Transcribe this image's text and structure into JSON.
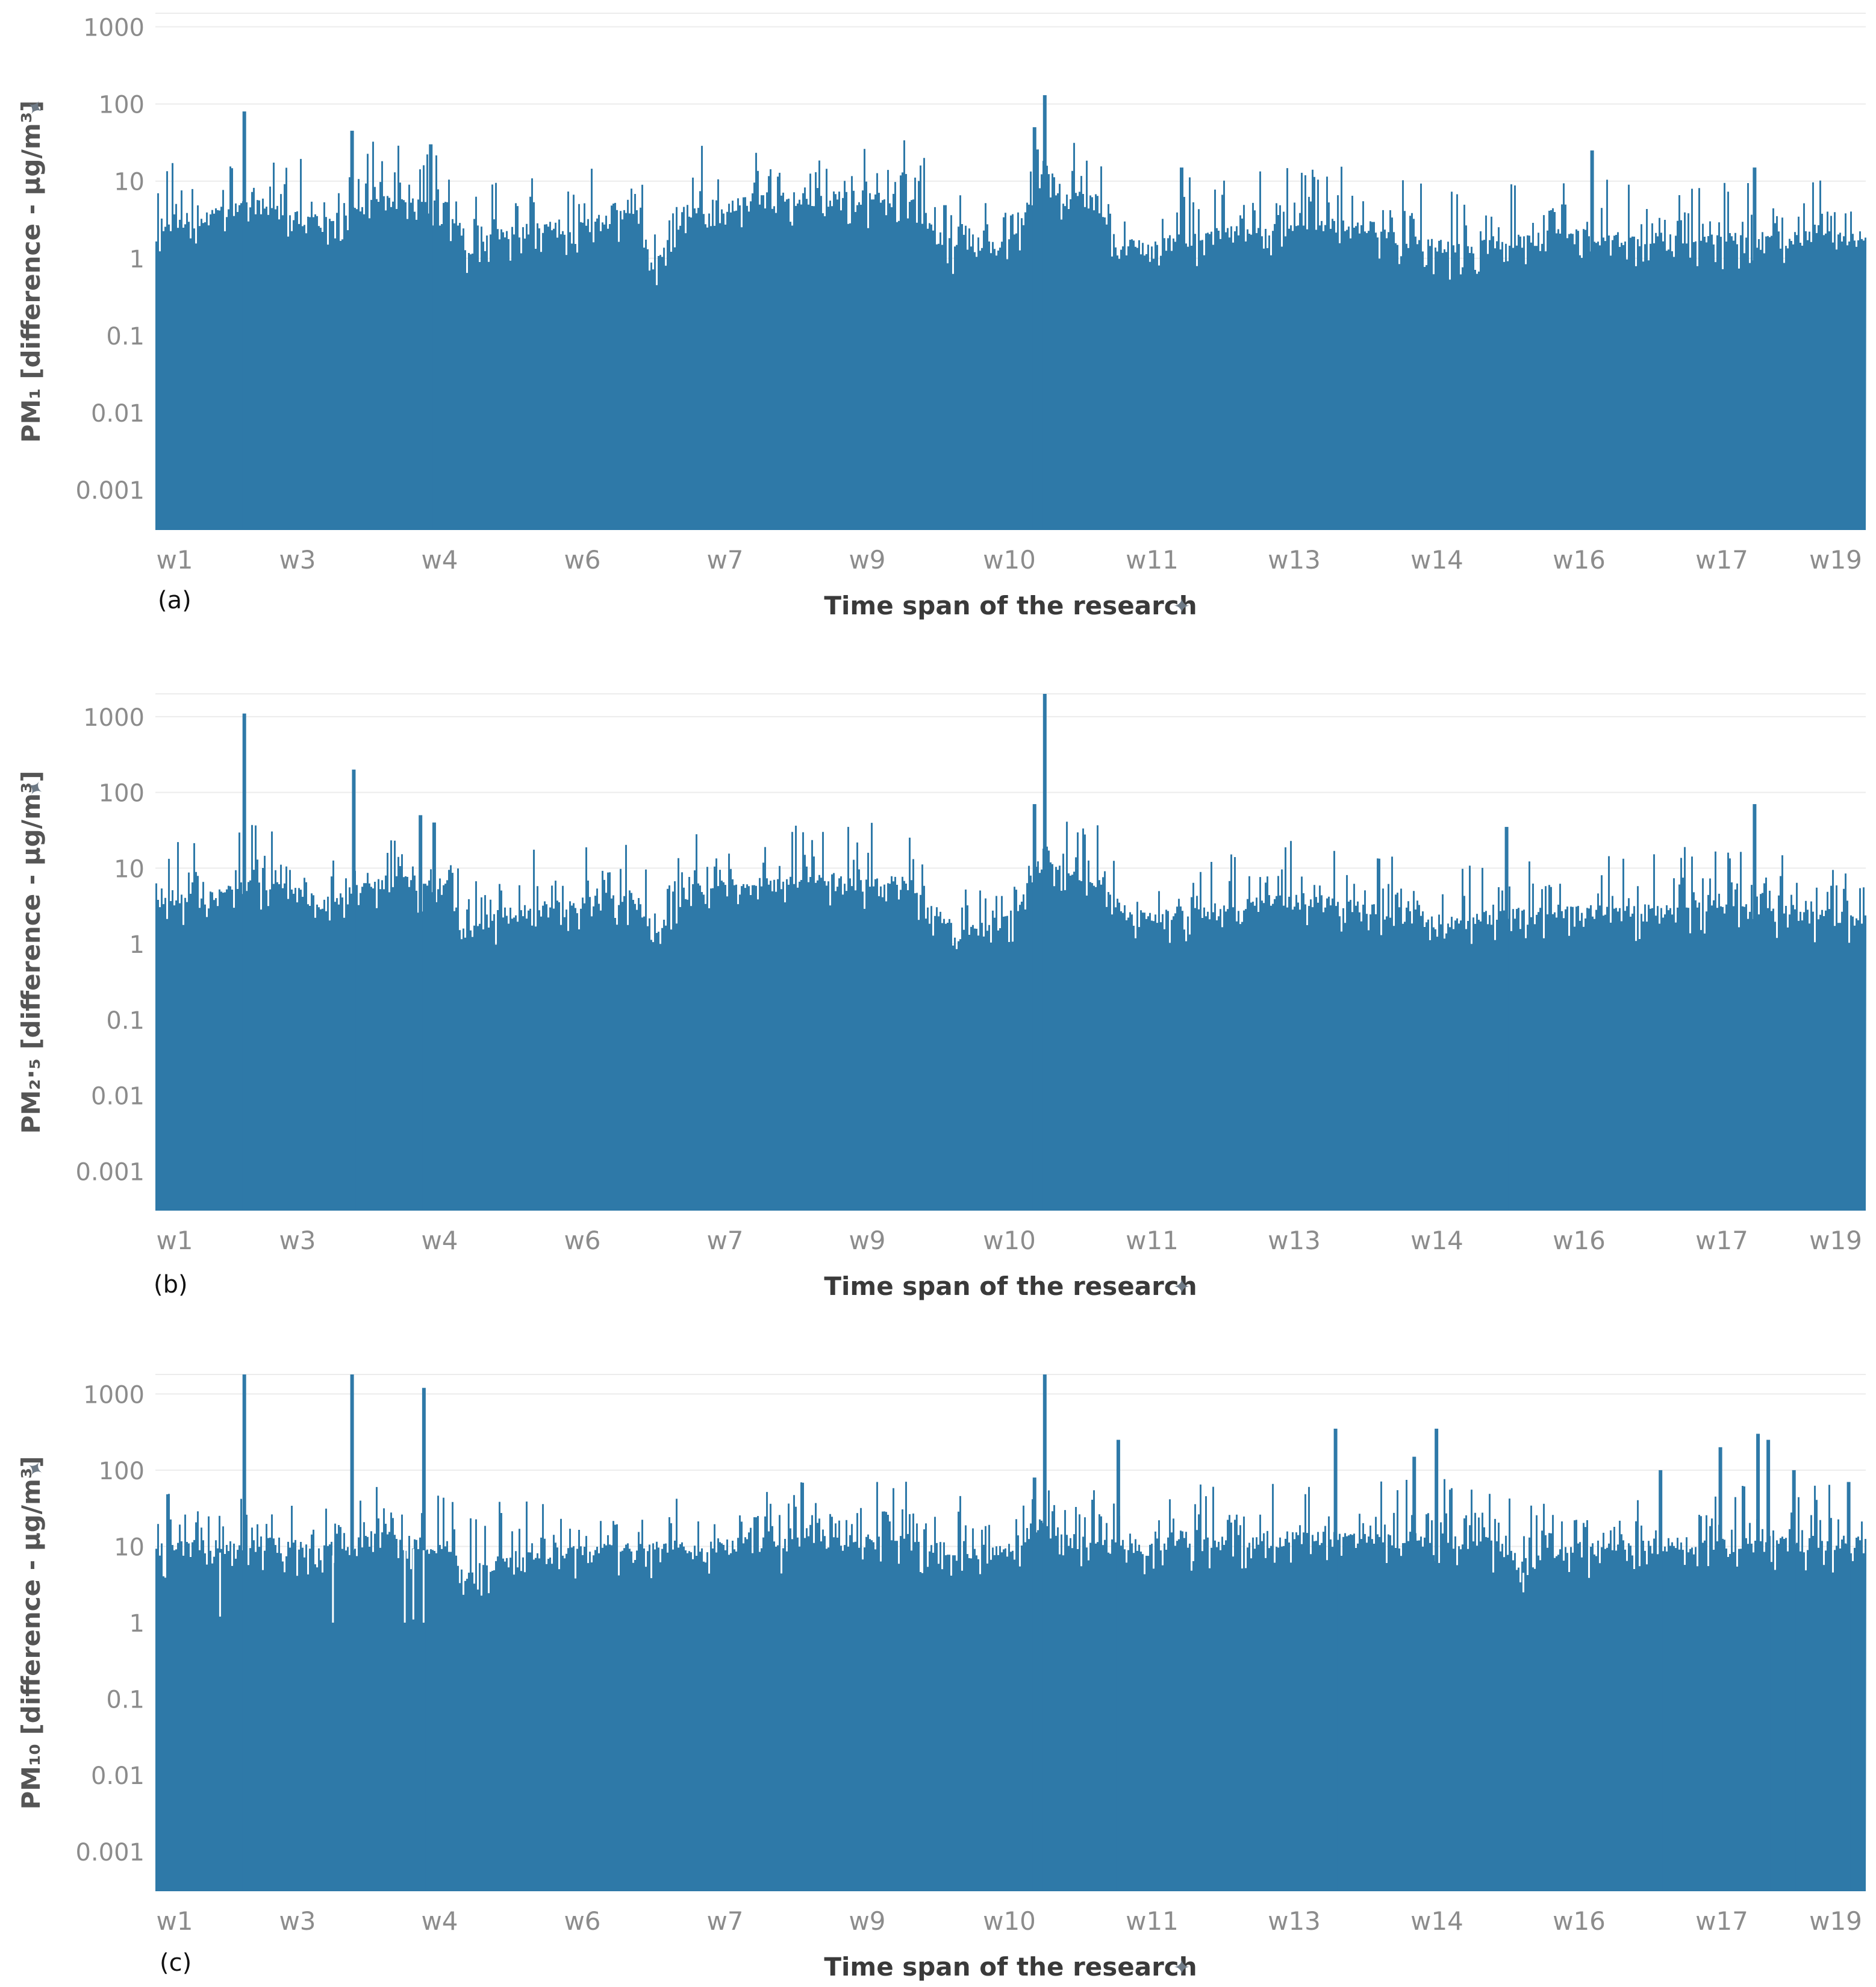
{
  "chart_data": [
    {
      "panel": "(a)",
      "type": "bar",
      "ylabel": "PM₁ [difference - µg/m³]",
      "xlabel": "Time span of the research",
      "yscale": "log",
      "ylim": [
        0.0003,
        1500
      ],
      "yticks": [
        "0.001",
        "0.01",
        "0.1",
        "1",
        "10",
        "100",
        "1000"
      ],
      "x_categories": [
        "w1",
        "w3",
        "w4",
        "w6",
        "w7",
        "w9",
        "w10",
        "w11",
        "w13",
        "w14",
        "w16",
        "w17",
        "w19"
      ],
      "color": "#2e79a8",
      "baseline_profile": [
        {
          "x": 0.0,
          "y": 2.5
        },
        {
          "x": 0.03,
          "y": 3.0
        },
        {
          "x": 0.06,
          "y": 4.5
        },
        {
          "x": 0.1,
          "y": 2.5
        },
        {
          "x": 0.13,
          "y": 5.0
        },
        {
          "x": 0.17,
          "y": 4.5
        },
        {
          "x": 0.18,
          "y": 1.2
        },
        {
          "x": 0.2,
          "y": 1.8
        },
        {
          "x": 0.25,
          "y": 2.5
        },
        {
          "x": 0.28,
          "y": 3.5
        },
        {
          "x": 0.29,
          "y": 0.8
        },
        {
          "x": 0.31,
          "y": 4.0
        },
        {
          "x": 0.38,
          "y": 6.0
        },
        {
          "x": 0.44,
          "y": 5.0
        },
        {
          "x": 0.46,
          "y": 2.0
        },
        {
          "x": 0.47,
          "y": 1.0
        },
        {
          "x": 0.5,
          "y": 1.5
        },
        {
          "x": 0.52,
          "y": 12.0
        },
        {
          "x": 0.53,
          "y": 6.0
        },
        {
          "x": 0.55,
          "y": 5.0
        },
        {
          "x": 0.56,
          "y": 1.2
        },
        {
          "x": 0.62,
          "y": 1.8
        },
        {
          "x": 0.66,
          "y": 2.2
        },
        {
          "x": 0.7,
          "y": 2.5
        },
        {
          "x": 0.76,
          "y": 1.1
        },
        {
          "x": 0.78,
          "y": 1.4
        },
        {
          "x": 0.82,
          "y": 1.8
        },
        {
          "x": 0.86,
          "y": 1.6
        },
        {
          "x": 0.9,
          "y": 1.5
        },
        {
          "x": 0.94,
          "y": 1.6
        },
        {
          "x": 1.0,
          "y": 1.6
        }
      ],
      "peaks": [
        {
          "x": 0.052,
          "y": 80
        },
        {
          "x": 0.115,
          "y": 45
        },
        {
          "x": 0.161,
          "y": 30
        },
        {
          "x": 0.52,
          "y": 130
        },
        {
          "x": 0.514,
          "y": 50
        },
        {
          "x": 0.6,
          "y": 15
        },
        {
          "x": 0.84,
          "y": 25
        },
        {
          "x": 0.935,
          "y": 15
        }
      ]
    },
    {
      "panel": "(b)",
      "type": "bar",
      "ylabel": "PM₂·₅ [difference - µg/m³]",
      "xlabel": "Time span of the research",
      "yscale": "log",
      "ylim": [
        0.0003,
        2000
      ],
      "yticks": [
        "0.001",
        "0.01",
        "0.1",
        "1",
        "10",
        "100",
        "1000"
      ],
      "x_categories": [
        "w1",
        "w3",
        "w4",
        "w6",
        "w7",
        "w9",
        "w10",
        "w11",
        "w13",
        "w14",
        "w16",
        "w17",
        "w19"
      ],
      "color": "#2e79a8",
      "baseline_profile": [
        {
          "x": 0.0,
          "y": 3.0
        },
        {
          "x": 0.03,
          "y": 3.5
        },
        {
          "x": 0.06,
          "y": 6.0
        },
        {
          "x": 0.1,
          "y": 3.0
        },
        {
          "x": 0.13,
          "y": 6.0
        },
        {
          "x": 0.17,
          "y": 5.5
        },
        {
          "x": 0.18,
          "y": 1.3
        },
        {
          "x": 0.2,
          "y": 2.2
        },
        {
          "x": 0.25,
          "y": 3.0
        },
        {
          "x": 0.28,
          "y": 4.0
        },
        {
          "x": 0.29,
          "y": 1.0
        },
        {
          "x": 0.31,
          "y": 4.5
        },
        {
          "x": 0.38,
          "y": 6.5
        },
        {
          "x": 0.44,
          "y": 5.5
        },
        {
          "x": 0.46,
          "y": 2.0
        },
        {
          "x": 0.47,
          "y": 1.2
        },
        {
          "x": 0.5,
          "y": 2.0
        },
        {
          "x": 0.52,
          "y": 15.0
        },
        {
          "x": 0.53,
          "y": 7.0
        },
        {
          "x": 0.55,
          "y": 5.5
        },
        {
          "x": 0.57,
          "y": 2.0
        },
        {
          "x": 0.62,
          "y": 2.5
        },
        {
          "x": 0.66,
          "y": 3.5
        },
        {
          "x": 0.7,
          "y": 3.0
        },
        {
          "x": 0.76,
          "y": 1.6
        },
        {
          "x": 0.78,
          "y": 2.0
        },
        {
          "x": 0.82,
          "y": 2.4
        },
        {
          "x": 0.86,
          "y": 2.3
        },
        {
          "x": 0.9,
          "y": 2.8
        },
        {
          "x": 0.94,
          "y": 2.5
        },
        {
          "x": 1.0,
          "y": 2.0
        }
      ],
      "peaks": [
        {
          "x": 0.052,
          "y": 1100
        },
        {
          "x": 0.116,
          "y": 200
        },
        {
          "x": 0.155,
          "y": 50
        },
        {
          "x": 0.52,
          "y": 2000
        },
        {
          "x": 0.514,
          "y": 70
        },
        {
          "x": 0.79,
          "y": 35
        },
        {
          "x": 0.935,
          "y": 70
        },
        {
          "x": 0.163,
          "y": 40
        }
      ]
    },
    {
      "panel": "(c)",
      "type": "bar",
      "ylabel": "PM₁₀ [difference - µg/m³]",
      "xlabel": "Time span of the research",
      "yscale": "log",
      "ylim": [
        0.0003,
        1800
      ],
      "yticks": [
        "0.001",
        "0.01",
        "0.1",
        "1",
        "10",
        "100",
        "1000"
      ],
      "x_categories": [
        "w1",
        "w3",
        "w4",
        "w6",
        "w7",
        "w9",
        "w10",
        "w11",
        "w13",
        "w14",
        "w16",
        "w17",
        "w19"
      ],
      "color": "#2e79a8",
      "baseline_profile": [
        {
          "x": 0.0,
          "y": 8.0
        },
        {
          "x": 0.06,
          "y": 10.0
        },
        {
          "x": 0.1,
          "y": 8.0
        },
        {
          "x": 0.13,
          "y": 12.0
        },
        {
          "x": 0.17,
          "y": 9.0
        },
        {
          "x": 0.18,
          "y": 4.0
        },
        {
          "x": 0.2,
          "y": 6.0
        },
        {
          "x": 0.25,
          "y": 7.5
        },
        {
          "x": 0.31,
          "y": 9.0
        },
        {
          "x": 0.38,
          "y": 10.0
        },
        {
          "x": 0.44,
          "y": 11.0
        },
        {
          "x": 0.47,
          "y": 7.0
        },
        {
          "x": 0.5,
          "y": 9.0
        },
        {
          "x": 0.52,
          "y": 22.0
        },
        {
          "x": 0.53,
          "y": 11.0
        },
        {
          "x": 0.57,
          "y": 9.0
        },
        {
          "x": 0.62,
          "y": 10.0
        },
        {
          "x": 0.66,
          "y": 12.0
        },
        {
          "x": 0.7,
          "y": 11.0
        },
        {
          "x": 0.74,
          "y": 12.0
        },
        {
          "x": 0.78,
          "y": 10.0
        },
        {
          "x": 0.8,
          "y": 5.0
        },
        {
          "x": 0.82,
          "y": 8.0
        },
        {
          "x": 0.86,
          "y": 9.0
        },
        {
          "x": 0.9,
          "y": 9.5
        },
        {
          "x": 0.94,
          "y": 10.0
        },
        {
          "x": 1.0,
          "y": 10.0
        }
      ],
      "peaks": [
        {
          "x": 0.052,
          "y": 1800
        },
        {
          "x": 0.115,
          "y": 1800
        },
        {
          "x": 0.157,
          "y": 1200
        },
        {
          "x": 0.52,
          "y": 1800
        },
        {
          "x": 0.514,
          "y": 80
        },
        {
          "x": 0.563,
          "y": 250
        },
        {
          "x": 0.69,
          "y": 350
        },
        {
          "x": 0.749,
          "y": 350
        },
        {
          "x": 0.736,
          "y": 150
        },
        {
          "x": 0.88,
          "y": 100
        },
        {
          "x": 0.915,
          "y": 200
        },
        {
          "x": 0.937,
          "y": 300
        },
        {
          "x": 0.943,
          "y": 250
        },
        {
          "x": 0.958,
          "y": 100
        },
        {
          "x": 0.99,
          "y": 70
        }
      ],
      "dips": [
        {
          "x": 0.038,
          "y": 1.2
        },
        {
          "x": 0.104,
          "y": 1.0
        },
        {
          "x": 0.146,
          "y": 1.0
        },
        {
          "x": 0.151,
          "y": 1.1
        },
        {
          "x": 0.157,
          "y": 1.0
        },
        {
          "x": 0.8,
          "y": 2.5
        }
      ]
    }
  ]
}
